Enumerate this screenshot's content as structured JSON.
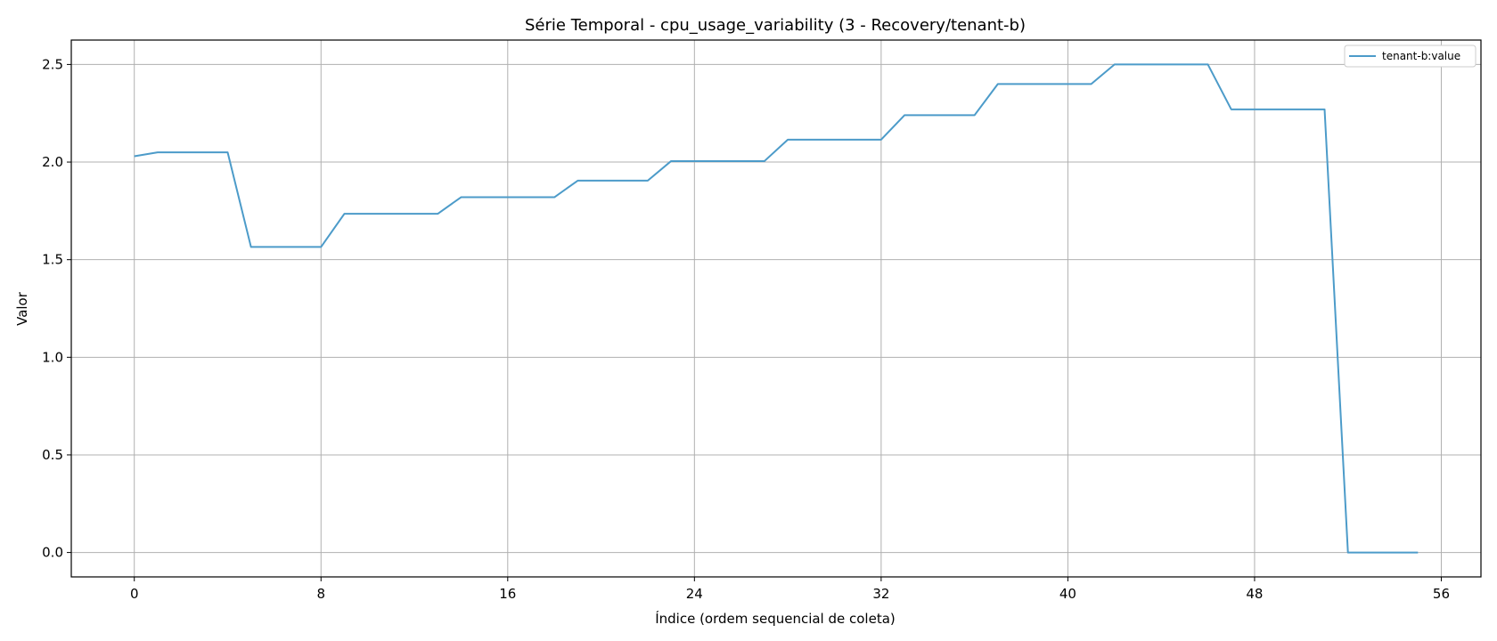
{
  "chart_data": {
    "type": "line",
    "title": "Série Temporal - cpu_usage_variability (3 - Recovery/tenant-b)",
    "xlabel": "Índice (ordem sequencial de coleta)",
    "ylabel": "Valor",
    "xlim": [
      -2.7,
      57.7
    ],
    "ylim": [
      -0.125,
      2.625
    ],
    "xticks": [
      0,
      8,
      16,
      24,
      32,
      40,
      48,
      56
    ],
    "yticks": [
      0.0,
      0.5,
      1.0,
      1.5,
      2.0,
      2.5
    ],
    "ytick_labels": [
      "0.0",
      "0.5",
      "1.0",
      "1.5",
      "2.0",
      "2.5"
    ],
    "grid": true,
    "legend_position": "top-right",
    "series": [
      {
        "name": "tenant-b:value",
        "color": "#4c9bc9",
        "x": [
          0,
          1,
          2,
          3,
          4,
          5,
          6,
          7,
          8,
          9,
          10,
          11,
          12,
          13,
          14,
          15,
          16,
          17,
          18,
          19,
          20,
          21,
          22,
          23,
          24,
          25,
          26,
          27,
          28,
          29,
          30,
          31,
          32,
          33,
          34,
          35,
          36,
          37,
          38,
          39,
          40,
          41,
          42,
          43,
          44,
          45,
          46,
          47,
          48,
          49,
          50,
          51,
          52,
          53,
          54,
          55
        ],
        "y": [
          2.03,
          2.05,
          2.05,
          2.05,
          2.05,
          1.565,
          1.565,
          1.565,
          1.565,
          1.735,
          1.735,
          1.735,
          1.735,
          1.735,
          1.82,
          1.82,
          1.82,
          1.82,
          1.82,
          1.905,
          1.905,
          1.905,
          1.905,
          2.005,
          2.005,
          2.005,
          2.005,
          2.005,
          2.115,
          2.115,
          2.115,
          2.115,
          2.115,
          2.24,
          2.24,
          2.24,
          2.24,
          2.4,
          2.4,
          2.4,
          2.4,
          2.4,
          2.5,
          2.5,
          2.5,
          2.5,
          2.5,
          2.27,
          2.27,
          2.27,
          2.27,
          2.27,
          0.0,
          0.0,
          0.0,
          0.0
        ]
      }
    ]
  }
}
